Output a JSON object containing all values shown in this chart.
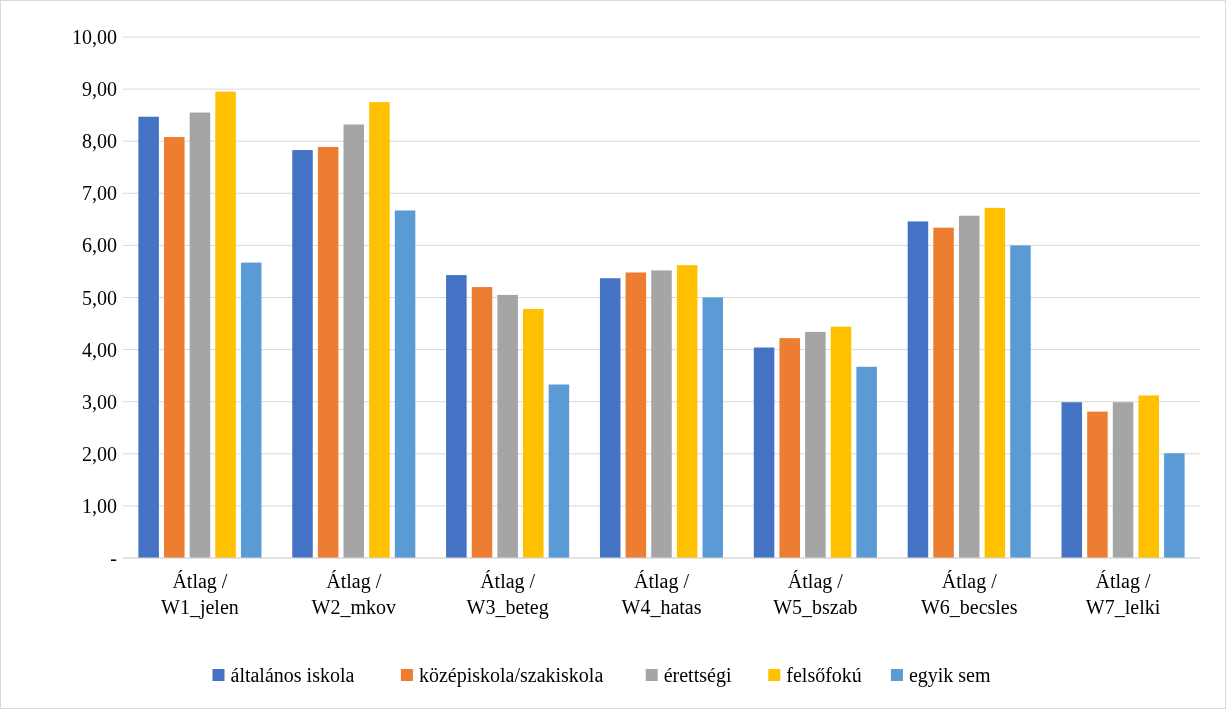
{
  "chart_data": {
    "type": "bar",
    "categories": [
      "Átlag / W1_jelen",
      "Átlag / W2_mkov",
      "Átlag / W3_beteg",
      "Átlag / W4_hatas",
      "Átlag / W5_bszab",
      "Átlag / W6_becsles",
      "Átlag / W7_lelki"
    ],
    "series": [
      {
        "name": "általános iskola",
        "color": "#4472c4",
        "values": [
          8.47,
          7.83,
          5.43,
          5.37,
          4.04,
          6.46,
          2.99
        ]
      },
      {
        "name": "középiskola/szakiskola",
        "color": "#ed7d31",
        "values": [
          8.08,
          7.89,
          5.2,
          5.48,
          4.22,
          6.34,
          2.81
        ]
      },
      {
        "name": "érettségi",
        "color": "#a5a5a5",
        "values": [
          8.55,
          8.32,
          5.05,
          5.52,
          4.34,
          6.57,
          2.99
        ]
      },
      {
        "name": "felsőfokú",
        "color": "#ffc000",
        "values": [
          8.95,
          8.75,
          4.78,
          5.62,
          4.44,
          6.72,
          3.12
        ]
      },
      {
        "name": "egyik sem",
        "color": "#5b9bd5",
        "values": [
          5.67,
          6.67,
          3.33,
          5.0,
          3.67,
          6.0,
          2.01
        ]
      }
    ],
    "ylim": [
      0,
      10
    ],
    "yticks": [
      {
        "value": 0,
        "label": "-"
      },
      {
        "value": 1,
        "label": "1,00"
      },
      {
        "value": 2,
        "label": "2,00"
      },
      {
        "value": 3,
        "label": "3,00"
      },
      {
        "value": 4,
        "label": "4,00"
      },
      {
        "value": 5,
        "label": "5,00"
      },
      {
        "value": 6,
        "label": "6,00"
      },
      {
        "value": 7,
        "label": "7,00"
      },
      {
        "value": 8,
        "label": "8,00"
      },
      {
        "value": 9,
        "label": "9,00"
      },
      {
        "value": 10,
        "label": "10,00"
      }
    ],
    "grid": "y",
    "legend": "bottom"
  }
}
